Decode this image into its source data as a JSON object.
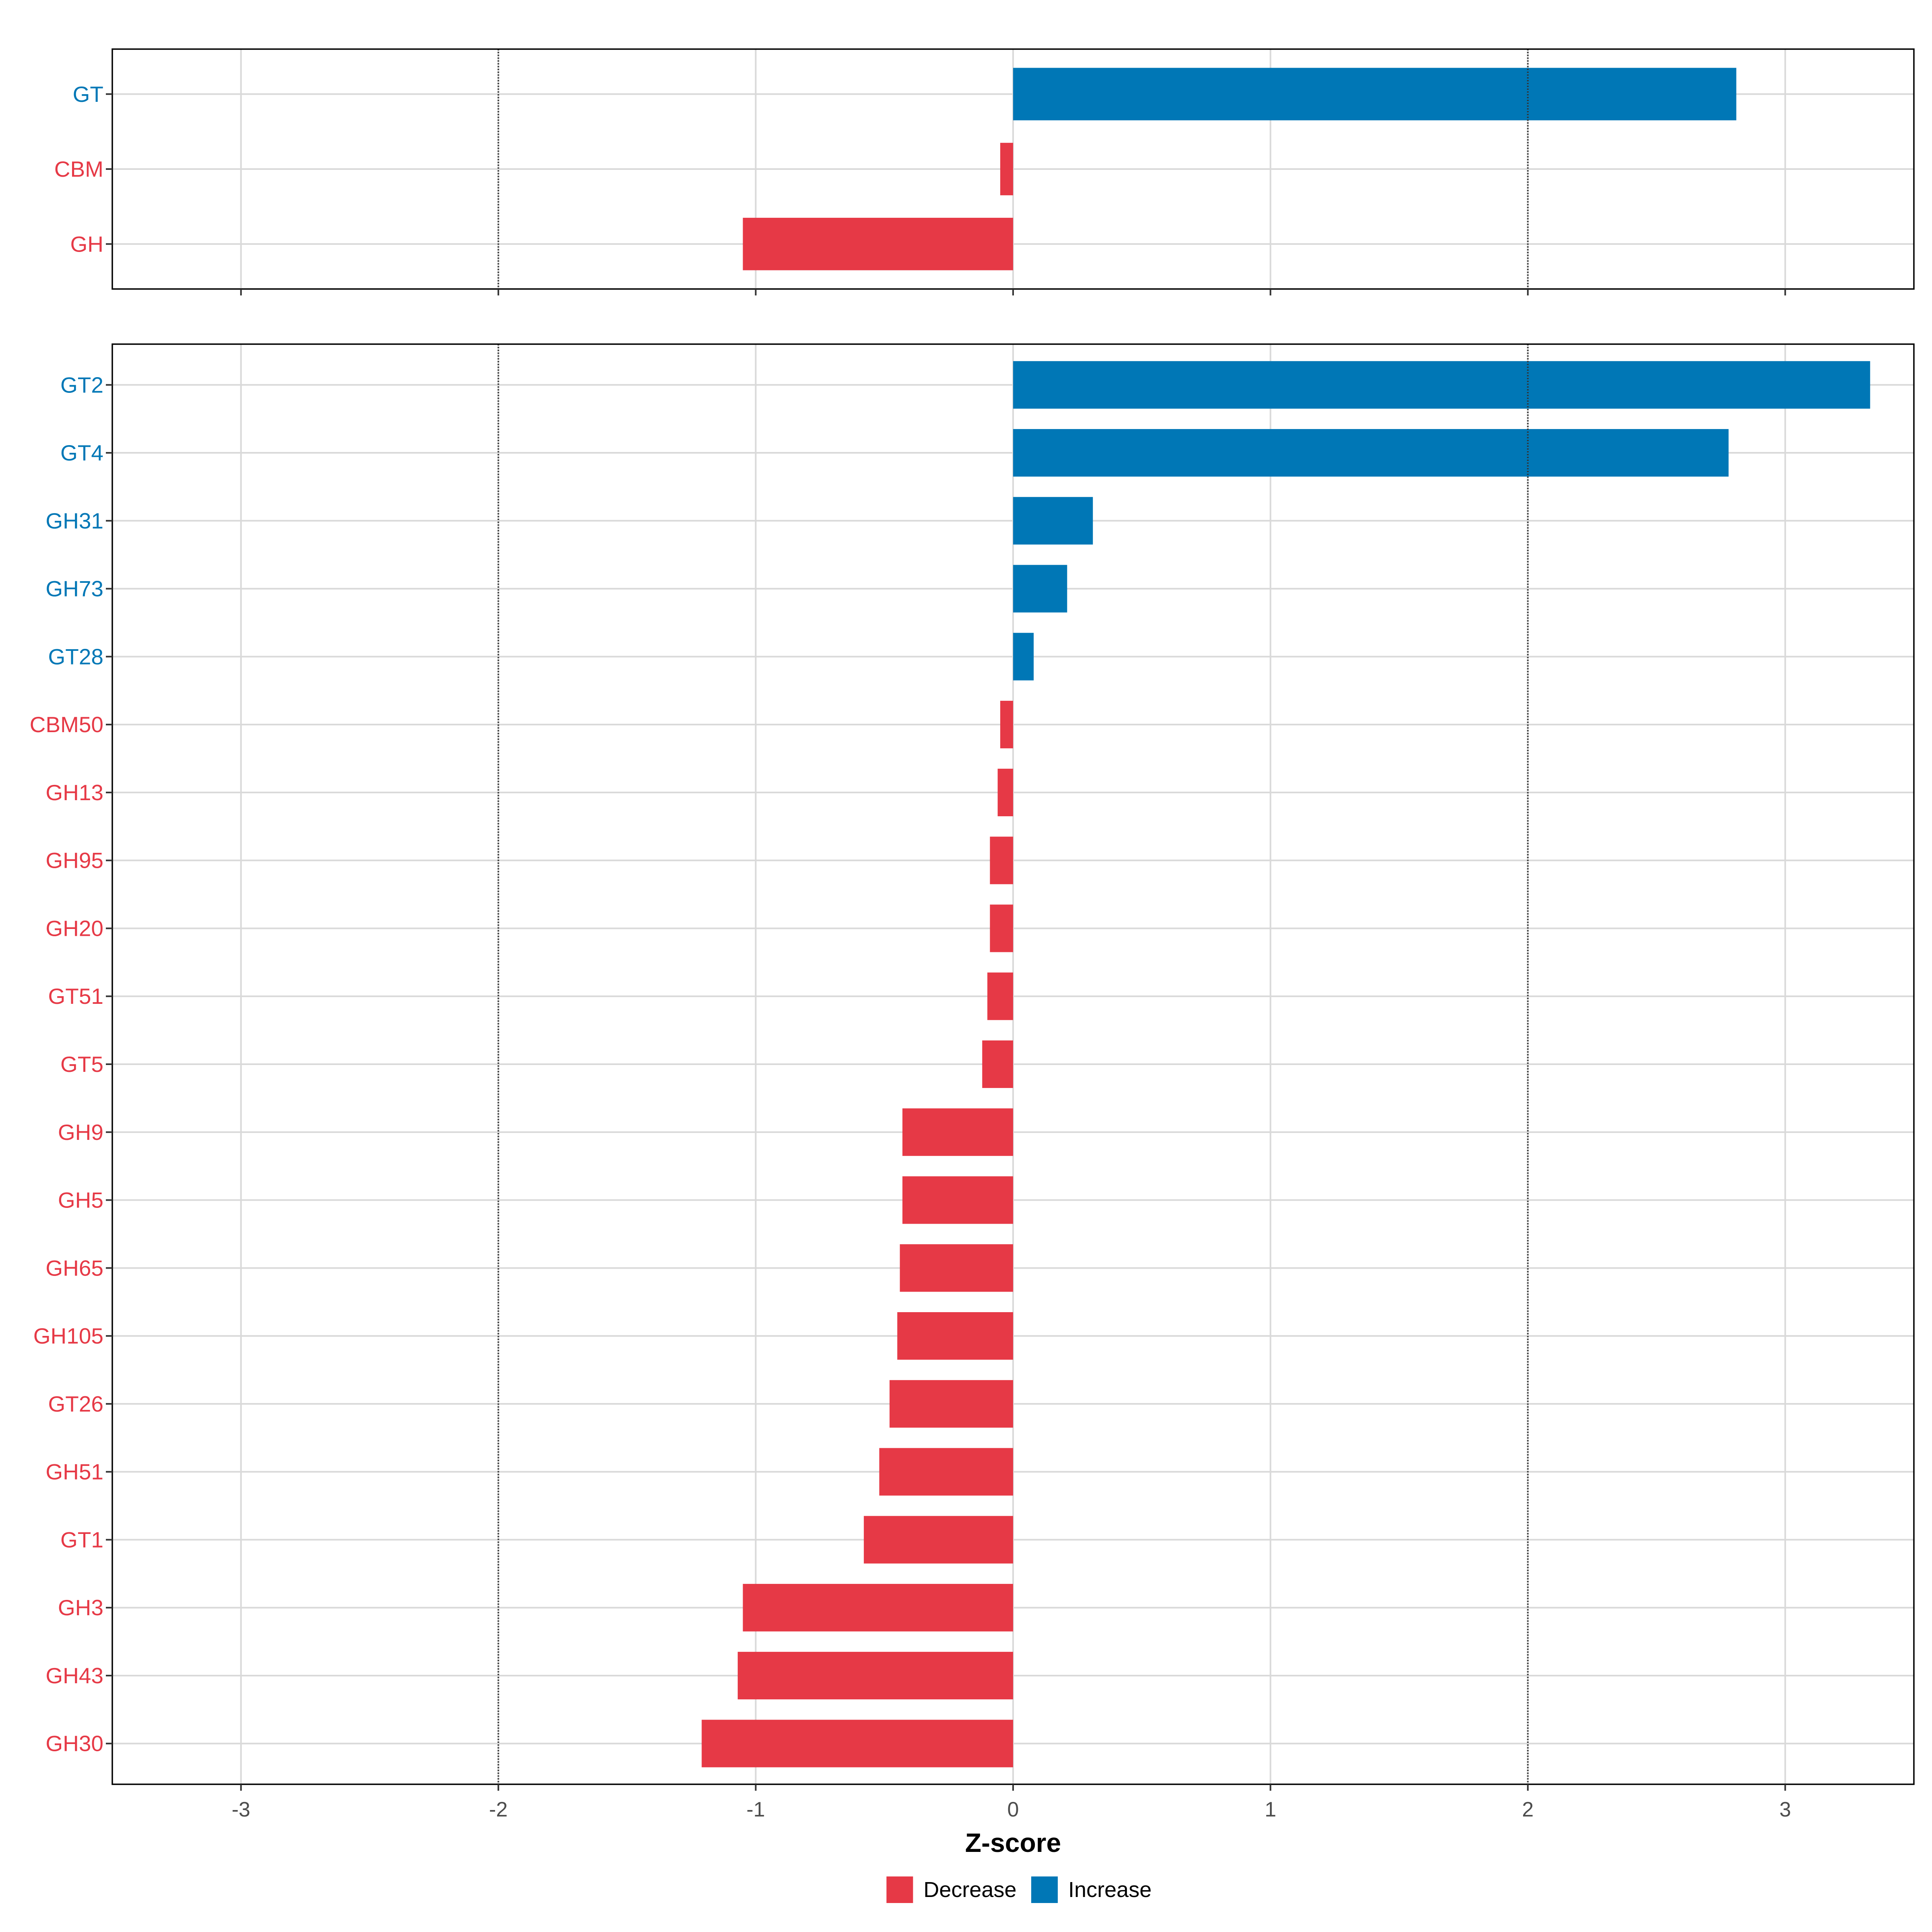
{
  "chart_data": [
    {
      "type": "bar",
      "orientation": "horizontal",
      "panel": "top",
      "xlim": [
        -3.5,
        3.5
      ],
      "x_ticks": [
        -3,
        -2,
        -1,
        0,
        1,
        2,
        3
      ],
      "reference_lines": [
        -2,
        2
      ],
      "grid": true,
      "categories": [
        "GT",
        "CBM",
        "GH"
      ],
      "values": [
        2.81,
        -0.05,
        -1.05
      ],
      "groups": [
        "Increase",
        "Decrease",
        "Decrease"
      ]
    },
    {
      "type": "bar",
      "orientation": "horizontal",
      "panel": "bottom",
      "xlim": [
        -3.5,
        3.5
      ],
      "x_ticks": [
        -3,
        -2,
        -1,
        0,
        1,
        2,
        3
      ],
      "x_tick_labels": [
        "-3",
        "-2",
        "-1",
        "0",
        "1",
        "2",
        "3"
      ],
      "reference_lines": [
        -2,
        2
      ],
      "grid": true,
      "xlabel": "Z-score",
      "categories": [
        "GT2",
        "GT4",
        "GH31",
        "GH73",
        "GT28",
        "CBM50",
        "GH13",
        "GH95",
        "GH20",
        "GT51",
        "GT5",
        "GH9",
        "GH5",
        "GH65",
        "GH105",
        "GT26",
        "GH51",
        "GT1",
        "GH3",
        "GH43",
        "GH30"
      ],
      "values": [
        3.33,
        2.78,
        0.31,
        0.21,
        0.08,
        -0.05,
        -0.06,
        -0.09,
        -0.09,
        -0.1,
        -0.12,
        -0.43,
        -0.43,
        -0.44,
        -0.45,
        -0.48,
        -0.52,
        -0.58,
        -1.05,
        -1.07,
        -1.21
      ],
      "groups": [
        "Increase",
        "Increase",
        "Increase",
        "Increase",
        "Increase",
        "Decrease",
        "Decrease",
        "Decrease",
        "Decrease",
        "Decrease",
        "Decrease",
        "Decrease",
        "Decrease",
        "Decrease",
        "Decrease",
        "Decrease",
        "Decrease",
        "Decrease",
        "Decrease",
        "Decrease",
        "Decrease"
      ]
    }
  ],
  "legend": {
    "placement": "bottom",
    "items": [
      {
        "label": "Decrease",
        "color": "#e63946"
      },
      {
        "label": "Increase",
        "color": "#0077b6"
      }
    ]
  },
  "colors": {
    "Decrease": "#e63946",
    "Increase": "#0077b6",
    "grid": "#d9d9d9",
    "reference": "#333333"
  }
}
